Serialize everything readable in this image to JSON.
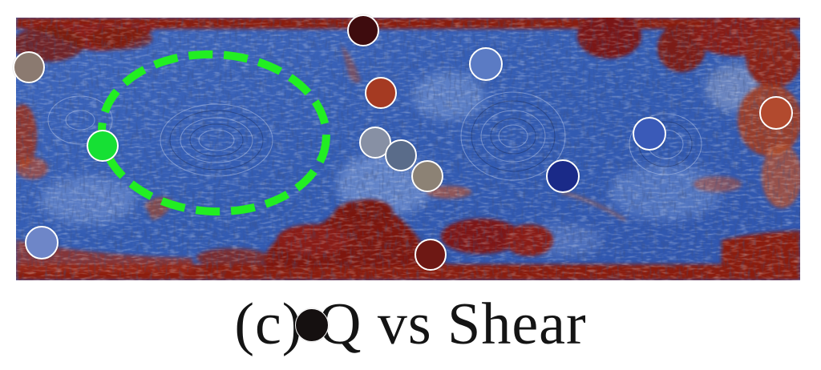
{
  "caption": "(c) Q vs Shear",
  "colors": {
    "field_blue": "#3a63b8",
    "field_red": "#8b1a10",
    "highlight_ellipse": "#22ee22"
  },
  "markers": [
    {
      "name": "marker-1",
      "color": "#8b7a70"
    },
    {
      "name": "marker-2",
      "color": "#3e0c0e"
    },
    {
      "name": "marker-3",
      "color": "#5b7bc4"
    },
    {
      "name": "marker-4",
      "color": "#a53a22"
    },
    {
      "name": "marker-5",
      "color": "#b24a2e"
    },
    {
      "name": "marker-6",
      "color": "#16e034"
    },
    {
      "name": "marker-7",
      "color": "#8790a4"
    },
    {
      "name": "marker-8",
      "color": "#5a6c8a"
    },
    {
      "name": "marker-9",
      "color": "#8c8275"
    },
    {
      "name": "marker-10",
      "color": "#3a5ab8"
    },
    {
      "name": "marker-11",
      "color": "#1a2a88"
    },
    {
      "name": "marker-12",
      "color": "#6e86c8"
    },
    {
      "name": "marker-13",
      "color": "#6e1814"
    },
    {
      "name": "marker-14",
      "color": "#151010"
    }
  ]
}
